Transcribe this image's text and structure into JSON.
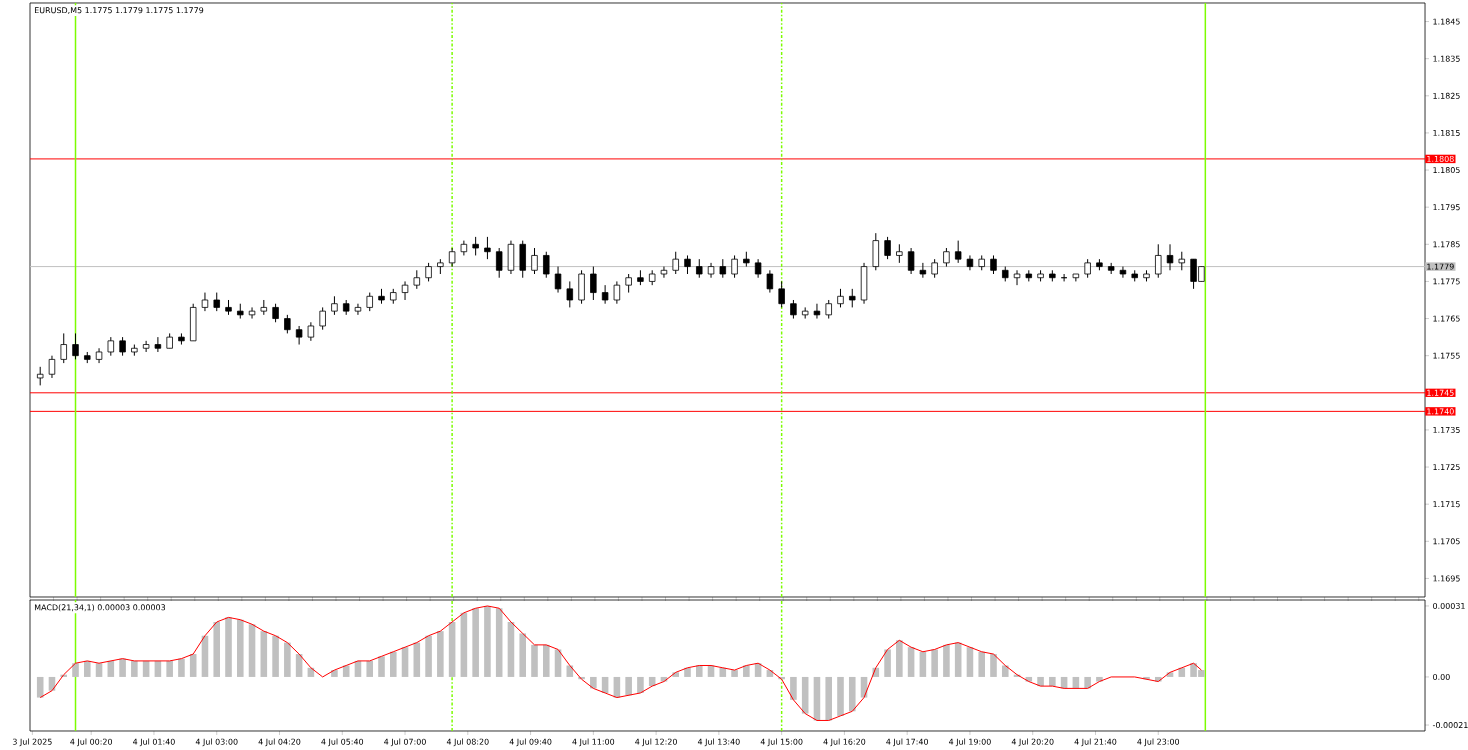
{
  "chart_data": [
    {
      "type": "candlestick",
      "title": "EURUSD,M5 1.1775 1.1779 1.1775 1.1779",
      "x": [
        "2025-07-03T23:15",
        "2025-07-03T23:30",
        "2025-07-03T23:45",
        "2025-07-04T00:00",
        "2025-07-04T00:15",
        "2025-07-04T00:30",
        "2025-07-04T00:45",
        "2025-07-04T01:00",
        "2025-07-04T01:15",
        "2025-07-04T01:30",
        "2025-07-04T01:45",
        "2025-07-04T02:00",
        "2025-07-04T02:15",
        "2025-07-04T02:30",
        "2025-07-04T02:45",
        "2025-07-04T03:00",
        "2025-07-04T03:15",
        "2025-07-04T03:30",
        "2025-07-04T03:45",
        "2025-07-04T04:00",
        "2025-07-04T04:15",
        "2025-07-04T04:30",
        "2025-07-04T04:45",
        "2025-07-04T05:00",
        "2025-07-04T05:15",
        "2025-07-04T05:30",
        "2025-07-04T05:45",
        "2025-07-04T06:00",
        "2025-07-04T06:15",
        "2025-07-04T06:30",
        "2025-07-04T06:45",
        "2025-07-04T07:00",
        "2025-07-04T07:15",
        "2025-07-04T07:30",
        "2025-07-04T07:45",
        "2025-07-04T08:00",
        "2025-07-04T08:15",
        "2025-07-04T08:30",
        "2025-07-04T08:45",
        "2025-07-04T09:00",
        "2025-07-04T09:15",
        "2025-07-04T09:30",
        "2025-07-04T09:45",
        "2025-07-04T10:00",
        "2025-07-04T10:15",
        "2025-07-04T10:30",
        "2025-07-04T10:45",
        "2025-07-04T11:00",
        "2025-07-04T11:15",
        "2025-07-04T11:30",
        "2025-07-04T11:45",
        "2025-07-04T12:00",
        "2025-07-04T12:15",
        "2025-07-04T12:30",
        "2025-07-04T12:45",
        "2025-07-04T13:00",
        "2025-07-04T13:15",
        "2025-07-04T13:30",
        "2025-07-04T13:45",
        "2025-07-04T14:00",
        "2025-07-04T14:15",
        "2025-07-04T14:30",
        "2025-07-04T14:45",
        "2025-07-04T15:00",
        "2025-07-04T15:15",
        "2025-07-04T15:30",
        "2025-07-04T15:45",
        "2025-07-04T16:00",
        "2025-07-04T16:15",
        "2025-07-04T16:30",
        "2025-07-04T16:45",
        "2025-07-04T17:00",
        "2025-07-04T17:15",
        "2025-07-04T17:30",
        "2025-07-04T17:45",
        "2025-07-04T18:00",
        "2025-07-04T18:15",
        "2025-07-04T18:30",
        "2025-07-04T18:45",
        "2025-07-04T19:00",
        "2025-07-04T19:15",
        "2025-07-04T19:30",
        "2025-07-04T19:45",
        "2025-07-04T20:00",
        "2025-07-04T20:15",
        "2025-07-04T20:30",
        "2025-07-04T20:45",
        "2025-07-04T21:00",
        "2025-07-04T21:15",
        "2025-07-04T21:30",
        "2025-07-04T21:45",
        "2025-07-04T22:00",
        "2025-07-04T22:15",
        "2025-07-04T22:30",
        "2025-07-04T22:45",
        "2025-07-04T23:00",
        "2025-07-04T23:15",
        "2025-07-04T23:30",
        "2025-07-04T23:45",
        "2025-07-04T23:55"
      ],
      "ohlc": [
        [
          1.1749,
          1.1752,
          1.1747,
          1.175
        ],
        [
          1.175,
          1.1755,
          1.1749,
          1.1754
        ],
        [
          1.1754,
          1.1761,
          1.1753,
          1.1758
        ],
        [
          1.1758,
          1.1761,
          1.1754,
          1.1755
        ],
        [
          1.1755,
          1.1756,
          1.1753,
          1.1754
        ],
        [
          1.1754,
          1.1757,
          1.1753,
          1.1756
        ],
        [
          1.1756,
          1.176,
          1.1755,
          1.1759
        ],
        [
          1.1759,
          1.176,
          1.1755,
          1.1756
        ],
        [
          1.1756,
          1.1758,
          1.1755,
          1.1757
        ],
        [
          1.1757,
          1.1759,
          1.1756,
          1.1758
        ],
        [
          1.1758,
          1.176,
          1.1756,
          1.1757
        ],
        [
          1.1757,
          1.1761,
          1.1757,
          1.176
        ],
        [
          1.176,
          1.1761,
          1.1758,
          1.1759
        ],
        [
          1.1759,
          1.1769,
          1.1759,
          1.1768
        ],
        [
          1.1768,
          1.1772,
          1.1767,
          1.177
        ],
        [
          1.177,
          1.1772,
          1.1767,
          1.1768
        ],
        [
          1.1768,
          1.177,
          1.1766,
          1.1767
        ],
        [
          1.1767,
          1.1769,
          1.1765,
          1.1766
        ],
        [
          1.1766,
          1.1768,
          1.1765,
          1.1767
        ],
        [
          1.1767,
          1.177,
          1.1766,
          1.1768
        ],
        [
          1.1768,
          1.1769,
          1.1764,
          1.1765
        ],
        [
          1.1765,
          1.1766,
          1.1761,
          1.1762
        ],
        [
          1.1762,
          1.1763,
          1.1758,
          1.176
        ],
        [
          1.176,
          1.1764,
          1.1759,
          1.1763
        ],
        [
          1.1763,
          1.1768,
          1.1762,
          1.1767
        ],
        [
          1.1767,
          1.1771,
          1.1766,
          1.1769
        ],
        [
          1.1769,
          1.177,
          1.1766,
          1.1767
        ],
        [
          1.1767,
          1.1769,
          1.1766,
          1.1768
        ],
        [
          1.1768,
          1.1772,
          1.1767,
          1.1771
        ],
        [
          1.1771,
          1.1773,
          1.1769,
          1.177
        ],
        [
          1.177,
          1.1773,
          1.1769,
          1.1772
        ],
        [
          1.1772,
          1.1775,
          1.177,
          1.1774
        ],
        [
          1.1774,
          1.1778,
          1.1773,
          1.1776
        ],
        [
          1.1776,
          1.178,
          1.1775,
          1.1779
        ],
        [
          1.1779,
          1.1781,
          1.1777,
          1.178
        ],
        [
          1.178,
          1.1784,
          1.1779,
          1.1783
        ],
        [
          1.1783,
          1.1786,
          1.1782,
          1.1785
        ],
        [
          1.1785,
          1.1787,
          1.1782,
          1.1784
        ],
        [
          1.1784,
          1.1787,
          1.1781,
          1.1783
        ],
        [
          1.1783,
          1.1784,
          1.1776,
          1.1778
        ],
        [
          1.1778,
          1.1786,
          1.1777,
          1.1785
        ],
        [
          1.1785,
          1.1786,
          1.1776,
          1.1778
        ],
        [
          1.1778,
          1.1784,
          1.1777,
          1.1782
        ],
        [
          1.1782,
          1.1783,
          1.1776,
          1.1777
        ],
        [
          1.1777,
          1.1779,
          1.1772,
          1.1773
        ],
        [
          1.1773,
          1.1775,
          1.1768,
          1.177
        ],
        [
          1.177,
          1.1778,
          1.1769,
          1.1777
        ],
        [
          1.1777,
          1.1779,
          1.177,
          1.1772
        ],
        [
          1.1772,
          1.1774,
          1.1769,
          1.177
        ],
        [
          1.177,
          1.1775,
          1.1769,
          1.1774
        ],
        [
          1.1774,
          1.1777,
          1.1772,
          1.1776
        ],
        [
          1.1776,
          1.1778,
          1.1774,
          1.1775
        ],
        [
          1.1775,
          1.1778,
          1.1774,
          1.1777
        ],
        [
          1.1777,
          1.1779,
          1.1776,
          1.1778
        ],
        [
          1.1778,
          1.1783,
          1.1777,
          1.1781
        ],
        [
          1.1781,
          1.1782,
          1.1777,
          1.1779
        ],
        [
          1.1779,
          1.1781,
          1.1776,
          1.1777
        ],
        [
          1.1777,
          1.178,
          1.1776,
          1.1779
        ],
        [
          1.1779,
          1.1781,
          1.1776,
          1.1777
        ],
        [
          1.1777,
          1.1782,
          1.1776,
          1.1781
        ],
        [
          1.1781,
          1.1783,
          1.1779,
          1.178
        ],
        [
          1.178,
          1.1781,
          1.1776,
          1.1777
        ],
        [
          1.1777,
          1.1778,
          1.1772,
          1.1773
        ],
        [
          1.1773,
          1.1775,
          1.1768,
          1.1769
        ],
        [
          1.1769,
          1.177,
          1.1765,
          1.1766
        ],
        [
          1.1766,
          1.1768,
          1.1765,
          1.1767
        ],
        [
          1.1767,
          1.1769,
          1.1765,
          1.1766
        ],
        [
          1.1766,
          1.177,
          1.1765,
          1.1769
        ],
        [
          1.1769,
          1.1773,
          1.1768,
          1.1771
        ],
        [
          1.1771,
          1.1773,
          1.1768,
          1.177
        ],
        [
          1.177,
          1.178,
          1.1769,
          1.1779
        ],
        [
          1.1779,
          1.1788,
          1.1778,
          1.1786
        ],
        [
          1.1786,
          1.1787,
          1.1781,
          1.1782
        ],
        [
          1.1782,
          1.1785,
          1.178,
          1.1783
        ],
        [
          1.1783,
          1.1784,
          1.1777,
          1.1778
        ],
        [
          1.1778,
          1.178,
          1.1776,
          1.1777
        ],
        [
          1.1777,
          1.1781,
          1.1776,
          1.178
        ],
        [
          1.178,
          1.1784,
          1.1779,
          1.1783
        ],
        [
          1.1783,
          1.1786,
          1.178,
          1.1781
        ],
        [
          1.1781,
          1.1782,
          1.1778,
          1.1779
        ],
        [
          1.1779,
          1.1782,
          1.1778,
          1.1781
        ],
        [
          1.1781,
          1.1782,
          1.1777,
          1.1778
        ],
        [
          1.1778,
          1.1779,
          1.1775,
          1.1776
        ],
        [
          1.1776,
          1.1778,
          1.1774,
          1.1777
        ],
        [
          1.1777,
          1.1778,
          1.1775,
          1.1776
        ],
        [
          1.1776,
          1.1778,
          1.1775,
          1.1777
        ],
        [
          1.1777,
          1.1778,
          1.1775,
          1.1776
        ],
        [
          1.1776,
          1.1777,
          1.1775,
          1.1776
        ],
        [
          1.1776,
          1.1777,
          1.1775,
          1.1777
        ],
        [
          1.1777,
          1.1781,
          1.1776,
          1.178
        ],
        [
          1.178,
          1.1781,
          1.1778,
          1.1779
        ],
        [
          1.1779,
          1.178,
          1.1777,
          1.1778
        ],
        [
          1.1778,
          1.1779,
          1.1776,
          1.1777
        ],
        [
          1.1777,
          1.1778,
          1.1775,
          1.1776
        ],
        [
          1.1776,
          1.1778,
          1.1775,
          1.1777
        ],
        [
          1.1777,
          1.1785,
          1.1776,
          1.1782
        ],
        [
          1.1782,
          1.1785,
          1.1778,
          1.178
        ],
        [
          1.178,
          1.1783,
          1.1778,
          1.1781
        ],
        [
          1.1781,
          1.1781,
          1.1773,
          1.1775
        ],
        [
          1.1775,
          1.1779,
          1.1775,
          1.1779
        ]
      ],
      "xlim": [
        "2025-07-03T23:02",
        "2025-07-05T04:40"
      ],
      "ylim": [
        1.169,
        1.185
      ],
      "yticks": [
        1.1695,
        1.1705,
        1.1715,
        1.1725,
        1.1735,
        1.1755,
        1.1765,
        1.1775,
        1.1785,
        1.1795,
        1.1805,
        1.1815,
        1.1825,
        1.1835,
        1.1845
      ],
      "tick_labels": "y",
      "ref_lines": [
        {
          "axis": "y",
          "value": 1.1808,
          "label": "1.1808",
          "color": "#ff0000"
        },
        {
          "axis": "y",
          "value": 1.1745,
          "label": "1.1745",
          "color": "#ff0000"
        },
        {
          "axis": "y",
          "value": 1.174,
          "label": "1.1740",
          "color": "#ff0000"
        },
        {
          "axis": "y",
          "value": 1.1779,
          "label": "1.1779",
          "color": "#c0c0c0"
        },
        {
          "axis": "x",
          "value": "2025-07-04T00:00",
          "color": "#7cfc00"
        },
        {
          "axis": "x",
          "value": "2025-07-05T00:00",
          "color": "#7cfc00"
        },
        {
          "axis": "x",
          "value": "2025-07-04T08:00",
          "color": "#7cfc00",
          "line_style": "dashed"
        },
        {
          "axis": "x",
          "value": "2025-07-04T15:00",
          "color": "#7cfc00",
          "line_style": "dashed"
        }
      ]
    },
    {
      "type": "bar",
      "title": "MACD(21,34,1) 0.00003 0.00003",
      "x": [
        "2025-07-03T23:15",
        "2025-07-03T23:30",
        "2025-07-03T23:45",
        "2025-07-04T00:00",
        "2025-07-04T00:15",
        "2025-07-04T00:30",
        "2025-07-04T00:45",
        "2025-07-04T01:00",
        "2025-07-04T01:15",
        "2025-07-04T01:30",
        "2025-07-04T01:45",
        "2025-07-04T02:00",
        "2025-07-04T02:15",
        "2025-07-04T02:30",
        "2025-07-04T02:45",
        "2025-07-04T03:00",
        "2025-07-04T03:15",
        "2025-07-04T03:30",
        "2025-07-04T03:45",
        "2025-07-04T04:00",
        "2025-07-04T04:15",
        "2025-07-04T04:30",
        "2025-07-04T04:45",
        "2025-07-04T05:00",
        "2025-07-04T05:15",
        "2025-07-04T05:30",
        "2025-07-04T05:45",
        "2025-07-04T06:00",
        "2025-07-04T06:15",
        "2025-07-04T06:30",
        "2025-07-04T06:45",
        "2025-07-04T07:00",
        "2025-07-04T07:15",
        "2025-07-04T07:30",
        "2025-07-04T07:45",
        "2025-07-04T08:00",
        "2025-07-04T08:15",
        "2025-07-04T08:30",
        "2025-07-04T08:45",
        "2025-07-04T09:00",
        "2025-07-04T09:15",
        "2025-07-04T09:30",
        "2025-07-04T09:45",
        "2025-07-04T10:00",
        "2025-07-04T10:15",
        "2025-07-04T10:30",
        "2025-07-04T10:45",
        "2025-07-04T11:00",
        "2025-07-04T11:15",
        "2025-07-04T11:30",
        "2025-07-04T11:45",
        "2025-07-04T12:00",
        "2025-07-04T12:15",
        "2025-07-04T12:30",
        "2025-07-04T12:45",
        "2025-07-04T13:00",
        "2025-07-04T13:15",
        "2025-07-04T13:30",
        "2025-07-04T13:45",
        "2025-07-04T14:00",
        "2025-07-04T14:15",
        "2025-07-04T14:30",
        "2025-07-04T14:45",
        "2025-07-04T15:00",
        "2025-07-04T15:15",
        "2025-07-04T15:30",
        "2025-07-04T15:45",
        "2025-07-04T16:00",
        "2025-07-04T16:15",
        "2025-07-04T16:30",
        "2025-07-04T16:45",
        "2025-07-04T17:00",
        "2025-07-04T17:15",
        "2025-07-04T17:30",
        "2025-07-04T17:45",
        "2025-07-04T18:00",
        "2025-07-04T18:15",
        "2025-07-04T18:30",
        "2025-07-04T18:45",
        "2025-07-04T19:00",
        "2025-07-04T19:15",
        "2025-07-04T19:30",
        "2025-07-04T19:45",
        "2025-07-04T20:00",
        "2025-07-04T20:15",
        "2025-07-04T20:30",
        "2025-07-04T20:45",
        "2025-07-04T21:00",
        "2025-07-04T21:15",
        "2025-07-04T21:30",
        "2025-07-04T21:45",
        "2025-07-04T22:00",
        "2025-07-04T22:15",
        "2025-07-04T22:30",
        "2025-07-04T22:45",
        "2025-07-04T23:00",
        "2025-07-04T23:15",
        "2025-07-04T23:30",
        "2025-07-04T23:45",
        "2025-07-04T23:55"
      ],
      "series": [
        {
          "type": "bar",
          "color": "#c0c0c0",
          "values": [
            -9e-05,
            -6e-05,
            1e-05,
            6e-05,
            7e-05,
            6e-05,
            7e-05,
            8e-05,
            7e-05,
            7e-05,
            7e-05,
            7e-05,
            8e-05,
            0.0001,
            0.00018,
            0.00024,
            0.00026,
            0.00025,
            0.00023,
            0.0002,
            0.00018,
            0.00015,
            0.0001,
            4e-05,
            0,
            3e-05,
            5e-05,
            7e-05,
            7e-05,
            9e-05,
            0.00011,
            0.00013,
            0.00015,
            0.00018,
            0.0002,
            0.00024,
            0.00028,
            0.0003,
            0.00031,
            0.0003,
            0.00024,
            0.00019,
            0.00014,
            0.00014,
            0.00012,
            5e-05,
            -1e-05,
            -5e-05,
            -7e-05,
            -9e-05,
            -8e-05,
            -7e-05,
            -4e-05,
            -2e-05,
            2e-05,
            4e-05,
            5e-05,
            5e-05,
            4e-05,
            3e-05,
            5e-05,
            6e-05,
            3e-05,
            -1e-05,
            -0.0001,
            -0.00016,
            -0.00019,
            -0.00019,
            -0.00017,
            -0.00015,
            -9e-05,
            4e-05,
            0.00012,
            0.00016,
            0.00013,
            0.00011,
            0.00012,
            0.00014,
            0.00015,
            0.00013,
            0.00011,
            0.0001,
            5e-05,
            1e-05,
            -2e-05,
            -4e-05,
            -4e-05,
            -5e-05,
            -5e-05,
            -5e-05,
            -2e-05,
            0,
            0,
            0,
            -1e-05,
            -2e-05,
            2e-05,
            4e-05,
            6e-05,
            3e-05
          ]
        },
        {
          "type": "line",
          "color": "#ff0000",
          "values": [
            -9e-05,
            -6e-05,
            1e-05,
            6e-05,
            7e-05,
            6e-05,
            7e-05,
            8e-05,
            7e-05,
            7e-05,
            7e-05,
            7e-05,
            8e-05,
            0.0001,
            0.00018,
            0.00024,
            0.00026,
            0.00025,
            0.00023,
            0.0002,
            0.00018,
            0.00015,
            0.0001,
            4e-05,
            0,
            3e-05,
            5e-05,
            7e-05,
            7e-05,
            9e-05,
            0.00011,
            0.00013,
            0.00015,
            0.00018,
            0.0002,
            0.00024,
            0.00028,
            0.0003,
            0.00031,
            0.0003,
            0.00024,
            0.00019,
            0.00014,
            0.00014,
            0.00012,
            5e-05,
            -1e-05,
            -5e-05,
            -7e-05,
            -9e-05,
            -8e-05,
            -7e-05,
            -4e-05,
            -2e-05,
            2e-05,
            4e-05,
            5e-05,
            5e-05,
            4e-05,
            3e-05,
            5e-05,
            6e-05,
            3e-05,
            -1e-05,
            -0.0001,
            -0.00016,
            -0.00019,
            -0.00019,
            -0.00017,
            -0.00015,
            -9e-05,
            4e-05,
            0.00012,
            0.00016,
            0.00013,
            0.00011,
            0.00012,
            0.00014,
            0.00015,
            0.00013,
            0.00011,
            0.0001,
            5e-05,
            1e-05,
            -2e-05,
            -4e-05,
            -4e-05,
            -5e-05,
            -5e-05,
            -5e-05,
            -2e-05,
            0,
            0,
            0,
            -1e-05,
            -2e-05,
            2e-05,
            4e-05,
            6e-05,
            3e-05
          ]
        }
      ],
      "xlim": [
        "2025-07-03T23:02",
        "2025-07-05T04:40"
      ],
      "xticks": [
        {
          "value": "2025-07-03T23:05",
          "label": "3 Jul 2025"
        },
        {
          "value": "2025-07-04T00:20",
          "label": "4 Jul 00:20"
        },
        {
          "value": "2025-07-04T01:40",
          "label": "4 Jul 01:40"
        },
        {
          "value": "2025-07-04T03:00",
          "label": "4 Jul 03:00"
        },
        {
          "value": "2025-07-04T04:20",
          "label": "4 Jul 04:20"
        },
        {
          "value": "2025-07-04T05:40",
          "label": "4 Jul 05:40"
        },
        {
          "value": "2025-07-04T07:00",
          "label": "4 Jul 07:00"
        },
        {
          "value": "2025-07-04T08:20",
          "label": "4 Jul 08:20"
        },
        {
          "value": "2025-07-04T09:40",
          "label": "4 Jul 09:40"
        },
        {
          "value": "2025-07-04T11:00",
          "label": "4 Jul 11:00"
        },
        {
          "value": "2025-07-04T12:20",
          "label": "4 Jul 12:20"
        },
        {
          "value": "2025-07-04T13:40",
          "label": "4 Jul 13:40"
        },
        {
          "value": "2025-07-04T15:00",
          "label": "4 Jul 15:00"
        },
        {
          "value": "2025-07-04T16:20",
          "label": "4 Jul 16:20"
        },
        {
          "value": "2025-07-04T17:40",
          "label": "4 Jul 17:40"
        },
        {
          "value": "2025-07-04T19:00",
          "label": "4 Jul 19:00"
        },
        {
          "value": "2025-07-04T20:20",
          "label": "4 Jul 20:20"
        },
        {
          "value": "2025-07-04T21:40",
          "label": "4 Jul 21:40"
        },
        {
          "value": "2025-07-04T23:00",
          "label": "4 Jul 23:00"
        }
      ],
      "ylim": [
        -0.000236,
        0.000336
      ],
      "yticks": [
        0.00031,
        {
          "value": 0,
          "label": "0.00"
        },
        -0.00021
      ],
      "ref_lines": [
        {
          "axis": "x",
          "value": "2025-07-04T00:00",
          "color": "#7cfc00"
        },
        {
          "axis": "x",
          "value": "2025-07-05T00:00",
          "color": "#7cfc00"
        },
        {
          "axis": "x",
          "value": "2025-07-04T08:00",
          "color": "#7cfc00",
          "line_style": "dashed"
        },
        {
          "axis": "x",
          "value": "2025-07-04T15:00",
          "color": "#7cfc00",
          "line_style": "dashed"
        }
      ]
    }
  ]
}
